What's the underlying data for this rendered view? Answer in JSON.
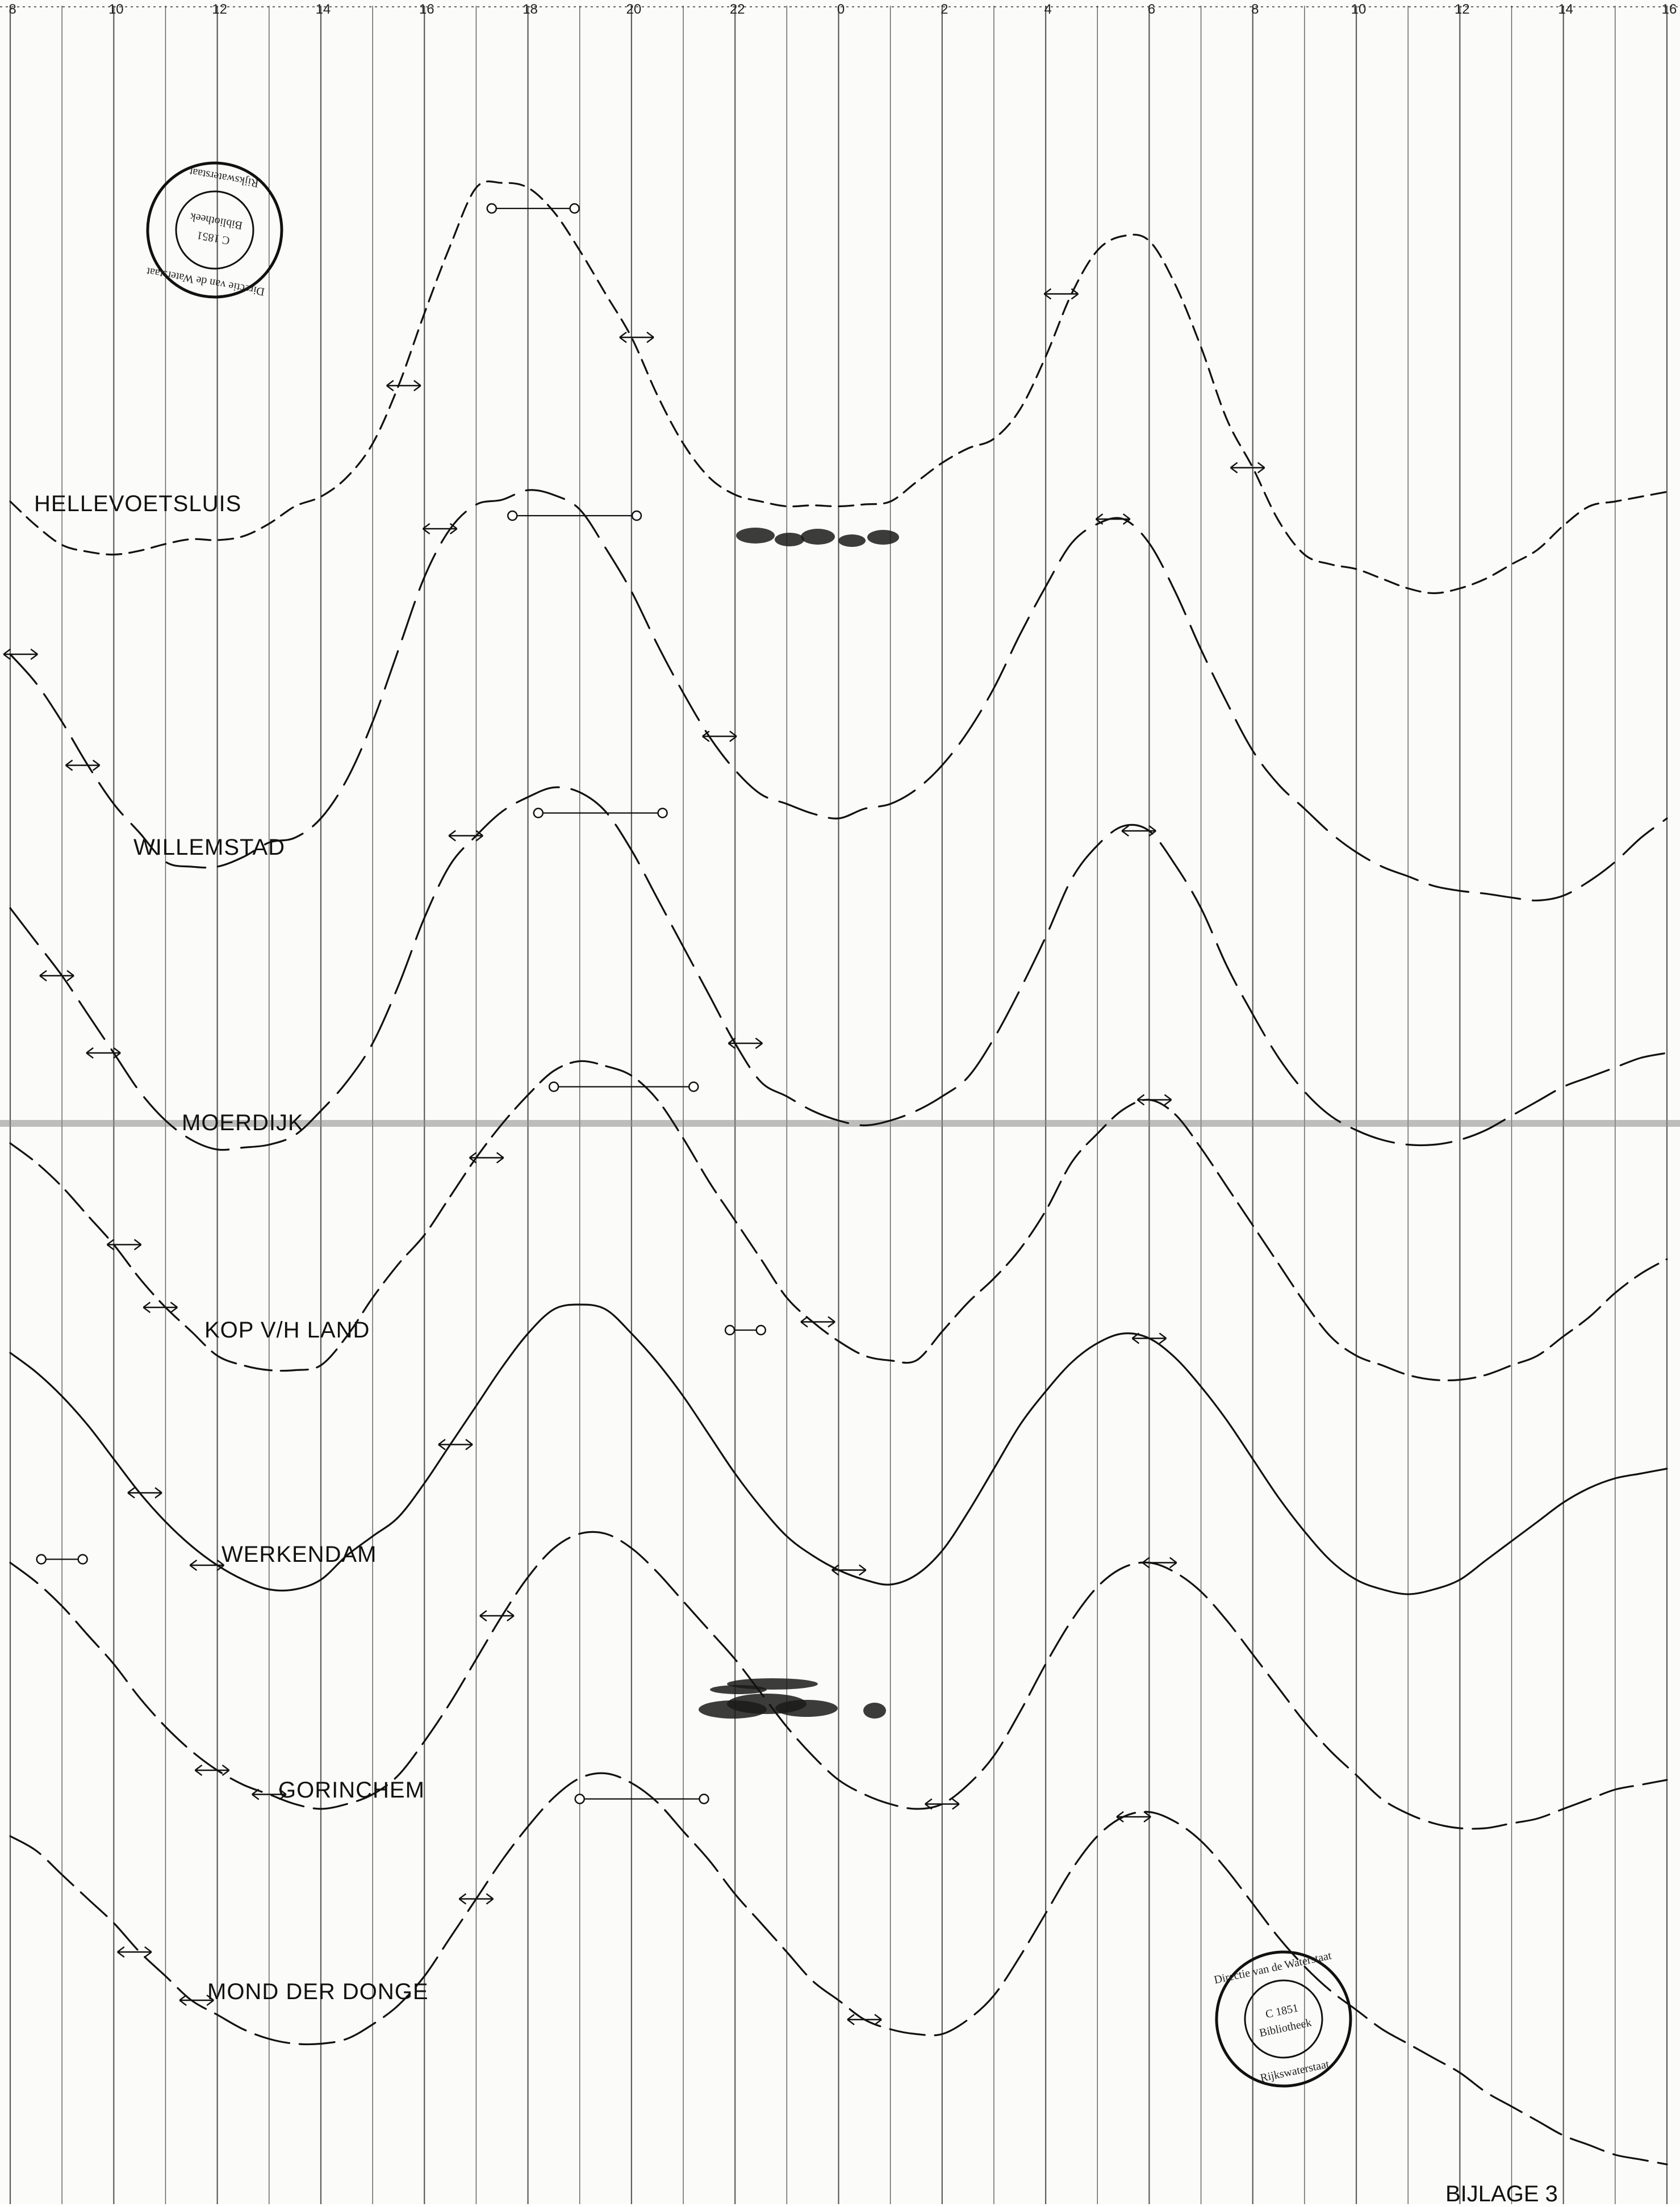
{
  "chart_data": {
    "type": "line",
    "title": "",
    "x_ticks": [
      "8",
      "10",
      "12",
      "14",
      "16",
      "18",
      "20",
      "22",
      "0",
      "2",
      "4",
      "6",
      "8",
      "10",
      "12",
      "14",
      "16"
    ],
    "xlim_hours": [
      8,
      40
    ],
    "grid": "vertical lines every 1 hour, labelled every 2 hours",
    "appendix_label": "BIJLAGE 3",
    "stamp_texts": [
      "Directie van de Waterstaat",
      "C 1851",
      "Bibliotheek",
      "Rijkswaterstaat"
    ],
    "colors": {
      "ink": "#111111",
      "grid": "#333333",
      "paper": "#fbfbf9",
      "stain": "#1a1a1a"
    },
    "series": [
      {
        "name": "HELLEVOETSLUIS",
        "hours": [
          8.0,
          8.5,
          9.0,
          9.5,
          10.0,
          10.5,
          11.0,
          11.5,
          12.0,
          12.5,
          13.0,
          13.5,
          14.0,
          14.5,
          15.0,
          15.5,
          16.0,
          16.5,
          17.0,
          17.5,
          18.0,
          18.5,
          19.0,
          19.5,
          20.0,
          20.5,
          21.0,
          21.5,
          22.0,
          22.5,
          23.0,
          23.5,
          24.0,
          24.5,
          25.0,
          25.5,
          26.0,
          26.5,
          27.0,
          27.5,
          28.0,
          28.5,
          29.0,
          29.5,
          30.0,
          30.5,
          31.0,
          31.5,
          32.0,
          32.5,
          33.0,
          33.5,
          34.0,
          34.5,
          35.0,
          35.5,
          36.0,
          36.5,
          37.0,
          37.5,
          38.0,
          38.5,
          39.0,
          39.5,
          40.0
        ],
        "relative_level": [
          0.1,
          -0.15,
          -0.35,
          -0.42,
          -0.45,
          -0.41,
          -0.34,
          -0.29,
          -0.3,
          -0.26,
          -0.13,
          0.05,
          0.15,
          0.35,
          0.7,
          1.3,
          2.05,
          2.75,
          3.35,
          3.4,
          3.35,
          3.1,
          2.7,
          2.25,
          1.8,
          1.2,
          0.7,
          0.35,
          0.17,
          0.1,
          0.05,
          0.06,
          0.05,
          0.07,
          0.1,
          0.3,
          0.5,
          0.65,
          0.75,
          1.05,
          1.6,
          2.25,
          2.7,
          2.85,
          2.8,
          2.35,
          1.7,
          0.95,
          0.45,
          -0.1,
          -0.45,
          -0.55,
          -0.6,
          -0.7,
          -0.8,
          -0.85,
          -0.8,
          -0.7,
          -0.55,
          -0.4,
          -0.15,
          0.05,
          0.1,
          0.15,
          0.2
        ],
        "high_water_interval": [
          "17.3",
          "18.9"
        ],
        "half_tide_marks": [
          "15.6",
          "20.1",
          "4.3",
          "7.9"
        ]
      },
      {
        "name": "WILLEMSTAD",
        "hours": [
          8.0,
          8.5,
          9.0,
          9.5,
          10.0,
          10.5,
          11.0,
          11.5,
          12.0,
          12.5,
          13.0,
          13.5,
          14.0,
          14.5,
          15.0,
          15.5,
          16.0,
          16.5,
          17.0,
          17.5,
          18.0,
          18.5,
          19.0,
          19.5,
          20.0,
          20.5,
          21.0,
          21.5,
          22.0,
          22.5,
          23.0,
          23.5,
          24.0,
          24.5,
          25.0,
          25.5,
          26.0,
          26.5,
          27.0,
          27.5,
          28.0,
          28.5,
          29.0,
          29.5,
          30.0,
          30.5,
          31.0,
          31.5,
          32.0,
          32.5,
          33.0,
          33.5,
          34.0,
          34.5,
          35.0,
          35.5,
          36.0,
          36.5,
          37.0,
          37.5,
          38.0,
          38.5,
          39.0,
          39.5,
          40.0
        ],
        "relative_level": [
          1.4,
          1.1,
          0.7,
          0.25,
          -0.15,
          -0.45,
          -0.75,
          -0.8,
          -0.8,
          -0.7,
          -0.55,
          -0.5,
          -0.3,
          0.1,
          0.7,
          1.45,
          2.2,
          2.7,
          2.95,
          3.0,
          3.1,
          3.05,
          2.9,
          2.5,
          2.05,
          1.5,
          1.0,
          0.55,
          0.2,
          -0.05,
          -0.15,
          -0.25,
          -0.3,
          -0.2,
          -0.15,
          0.0,
          0.25,
          0.6,
          1.05,
          1.6,
          2.1,
          2.55,
          2.75,
          2.8,
          2.55,
          2.05,
          1.45,
          0.9,
          0.4,
          0.05,
          -0.2,
          -0.45,
          -0.65,
          -0.8,
          -0.9,
          -1.0,
          -1.05,
          -1.08,
          -1.12,
          -1.15,
          -1.1,
          -0.95,
          -0.75,
          -0.5,
          -0.3
        ],
        "high_water_interval": [
          "17.7",
          "20.1"
        ],
        "half_tide_marks": [
          "8.2",
          "16.3",
          "21.7",
          "5.3",
          "9.4"
        ]
      },
      {
        "name": "MOERDIJK",
        "hours": [
          8.0,
          8.5,
          9.0,
          9.5,
          10.0,
          10.5,
          11.0,
          11.5,
          12.0,
          12.5,
          13.0,
          13.5,
          14.0,
          14.5,
          15.0,
          15.5,
          16.0,
          16.5,
          17.0,
          17.5,
          18.0,
          18.5,
          19.0,
          19.5,
          20.0,
          20.5,
          21.0,
          21.5,
          22.0,
          22.5,
          23.0,
          23.5,
          24.0,
          24.5,
          25.0,
          25.5,
          26.0,
          26.5,
          27.0,
          27.5,
          28.0,
          28.5,
          29.0,
          29.5,
          30.0,
          30.5,
          31.0,
          31.5,
          32.0,
          32.5,
          33.0,
          33.5,
          34.0,
          34.5,
          35.0,
          35.5,
          36.0,
          36.5,
          37.0,
          37.5,
          38.0,
          38.5,
          39.0,
          39.5,
          40.0
        ],
        "relative_level": [
          1.8,
          1.45,
          1.1,
          0.7,
          0.3,
          -0.1,
          -0.4,
          -0.6,
          -0.7,
          -0.68,
          -0.65,
          -0.55,
          -0.3,
          0.0,
          0.4,
          1.0,
          1.7,
          2.25,
          2.55,
          2.8,
          2.95,
          3.05,
          3.0,
          2.8,
          2.4,
          1.9,
          1.4,
          0.9,
          0.4,
          0.0,
          -0.15,
          -0.3,
          -0.4,
          -0.45,
          -0.4,
          -0.3,
          -0.15,
          0.05,
          0.45,
          0.95,
          1.5,
          2.1,
          2.45,
          2.65,
          2.6,
          2.25,
          1.8,
          1.2,
          0.7,
          0.25,
          -0.1,
          -0.35,
          -0.5,
          -0.6,
          -0.65,
          -0.65,
          -0.6,
          -0.5,
          -0.35,
          -0.2,
          -0.05,
          0.05,
          0.15,
          0.25,
          0.3
        ],
        "high_water_interval": [
          "18.2",
          "20.6"
        ],
        "half_tide_marks": [
          "8.9",
          "16.8",
          "22.2",
          "5.8",
          "9.8"
        ]
      },
      {
        "name": "KOP V/H LAND",
        "hours": [
          8.0,
          8.5,
          9.0,
          9.5,
          10.0,
          10.5,
          11.0,
          11.5,
          12.0,
          12.5,
          13.0,
          13.5,
          14.0,
          14.5,
          15.0,
          15.5,
          16.0,
          16.5,
          17.0,
          17.5,
          18.0,
          18.5,
          19.0,
          19.5,
          20.0,
          20.5,
          21.0,
          21.5,
          22.0,
          22.5,
          23.0,
          23.5,
          24.0,
          24.5,
          25.0,
          25.5,
          26.0,
          26.5,
          27.0,
          27.5,
          28.0,
          28.5,
          29.0,
          29.5,
          30.0,
          30.5,
          31.0,
          31.5,
          32.0,
          32.5,
          33.0,
          33.5,
          34.0,
          34.5,
          35.0,
          35.5,
          36.0,
          36.5,
          37.0,
          37.5,
          38.0,
          38.5,
          39.0,
          39.5,
          40.0
        ],
        "relative_level": [
          2.1,
          1.9,
          1.65,
          1.35,
          1.05,
          0.7,
          0.4,
          0.15,
          -0.1,
          -0.2,
          -0.25,
          -0.25,
          -0.2,
          0.1,
          0.5,
          0.85,
          1.15,
          1.55,
          1.95,
          2.3,
          2.6,
          2.85,
          2.95,
          2.9,
          2.8,
          2.55,
          2.15,
          1.7,
          1.3,
          0.9,
          0.5,
          0.25,
          0.05,
          -0.1,
          -0.15,
          -0.15,
          0.15,
          0.45,
          0.7,
          1.0,
          1.4,
          1.9,
          2.2,
          2.45,
          2.55,
          2.4,
          2.05,
          1.65,
          1.25,
          0.85,
          0.45,
          0.1,
          -0.1,
          -0.2,
          -0.3,
          -0.35,
          -0.35,
          -0.3,
          -0.2,
          -0.1,
          0.1,
          0.3,
          0.55,
          0.75,
          0.9
        ],
        "high_water_interval": [
          "18.5",
          "21.2"
        ],
        "half_tide_marks": [
          "10.2",
          "17.2",
          "23.6",
          "6.1",
          "10.9"
        ]
      },
      {
        "name": "WERKENDAM",
        "hours": [
          8.0,
          8.5,
          9.0,
          9.5,
          10.0,
          10.5,
          11.0,
          11.5,
          12.0,
          12.5,
          13.0,
          13.5,
          14.0,
          14.5,
          15.0,
          15.5,
          16.0,
          16.5,
          17.0,
          17.5,
          18.0,
          18.5,
          19.0,
          19.5,
          20.0,
          20.5,
          21.0,
          21.5,
          22.0,
          22.5,
          23.0,
          23.5,
          24.0,
          24.5,
          25.0,
          25.5,
          26.0,
          26.5,
          27.0,
          27.5,
          28.0,
          28.5,
          29.0,
          29.5,
          30.0,
          30.5,
          31.0,
          31.5,
          32.0,
          32.5,
          33.0,
          33.5,
          34.0,
          34.5,
          35.0,
          35.5,
          36.0,
          36.5,
          37.0,
          37.5,
          38.0,
          38.5,
          39.0,
          39.5,
          40.0
        ],
        "relative_level": [
          2.4,
          2.2,
          1.95,
          1.65,
          1.3,
          0.95,
          0.65,
          0.4,
          0.2,
          0.05,
          -0.05,
          -0.05,
          0.05,
          0.3,
          0.5,
          0.7,
          1.05,
          1.45,
          1.85,
          2.25,
          2.6,
          2.85,
          2.9,
          2.85,
          2.6,
          2.3,
          1.95,
          1.55,
          1.15,
          0.8,
          0.5,
          0.3,
          0.15,
          0.05,
          0.0,
          0.1,
          0.35,
          0.75,
          1.2,
          1.65,
          2.0,
          2.3,
          2.5,
          2.6,
          2.55,
          2.35,
          2.05,
          1.7,
          1.3,
          0.9,
          0.55,
          0.25,
          0.05,
          -0.05,
          -0.1,
          -0.05,
          0.05,
          0.25,
          0.45,
          0.65,
          0.85,
          1.0,
          1.1,
          1.15,
          1.2
        ],
        "high_water_interval": [
          "21.9",
          "22.5"
        ],
        "half_tide_marks": [
          "10.6",
          "16.6",
          "24.2",
          "6.0",
          "11.8"
        ]
      },
      {
        "name": "GORINCHEM",
        "hours": [
          8.0,
          8.5,
          9.0,
          9.5,
          10.0,
          10.5,
          11.0,
          11.5,
          12.0,
          12.5,
          13.0,
          13.5,
          14.0,
          14.5,
          15.0,
          15.5,
          16.0,
          16.5,
          17.0,
          17.5,
          18.0,
          18.5,
          19.0,
          19.5,
          20.0,
          20.5,
          21.0,
          21.5,
          22.0,
          22.5,
          23.0,
          23.5,
          24.0,
          24.5,
          25.0,
          25.5,
          26.0,
          26.5,
          27.0,
          27.5,
          28.0,
          28.5,
          29.0,
          29.5,
          30.0,
          30.5,
          31.0,
          31.5,
          32.0,
          32.5,
          33.0,
          33.5,
          34.0,
          34.5,
          35.0,
          35.5,
          36.0,
          36.5,
          37.0,
          37.5,
          38.0,
          38.5,
          39.0,
          39.5,
          40.0
        ],
        "relative_level": [
          2.55,
          2.35,
          2.1,
          1.8,
          1.5,
          1.15,
          0.85,
          0.6,
          0.4,
          0.25,
          0.15,
          0.05,
          0.0,
          0.05,
          0.15,
          0.35,
          0.7,
          1.1,
          1.55,
          2.0,
          2.4,
          2.7,
          2.85,
          2.85,
          2.7,
          2.45,
          2.15,
          1.85,
          1.55,
          1.2,
          0.85,
          0.55,
          0.3,
          0.15,
          0.05,
          0.0,
          0.05,
          0.25,
          0.55,
          1.0,
          1.5,
          1.95,
          2.3,
          2.5,
          2.55,
          2.45,
          2.25,
          1.95,
          1.6,
          1.25,
          0.9,
          0.6,
          0.35,
          0.1,
          -0.05,
          -0.15,
          -0.2,
          -0.2,
          -0.15,
          -0.1,
          0.0,
          0.1,
          0.2,
          0.25,
          0.3
        ],
        "high_water_interval": [
          "8.6",
          "9.4"
        ],
        "half_tide_marks": [
          "11.9",
          "17.4",
          "26.0",
          "6.2",
          "13.0"
        ]
      },
      {
        "name": "MOND DER DONGE",
        "hours": [
          8.0,
          8.5,
          9.0,
          9.5,
          10.0,
          10.5,
          11.0,
          11.5,
          12.0,
          12.5,
          13.0,
          13.5,
          14.0,
          14.5,
          15.0,
          15.5,
          16.0,
          16.5,
          17.0,
          17.5,
          18.0,
          18.5,
          19.0,
          19.5,
          20.0,
          20.5,
          21.0,
          21.5,
          22.0,
          22.5,
          23.0,
          23.5,
          24.0,
          24.5,
          25.0,
          25.5,
          26.0,
          26.5,
          27.0,
          27.5,
          28.0,
          28.5,
          29.0,
          29.5,
          30.0,
          30.5,
          31.0,
          31.5,
          32.0,
          32.5,
          33.0,
          33.5,
          34.0,
          34.5,
          35.0,
          35.5,
          36.0,
          36.5,
          37.0,
          37.5,
          38.0,
          38.5,
          39.0,
          39.5,
          40.0
        ],
        "relative_level": [
          2.1,
          1.95,
          1.7,
          1.45,
          1.2,
          0.9,
          0.65,
          0.4,
          0.25,
          0.1,
          0.0,
          -0.05,
          -0.05,
          0.0,
          0.15,
          0.35,
          0.65,
          1.05,
          1.45,
          1.85,
          2.2,
          2.5,
          2.7,
          2.75,
          2.65,
          2.45,
          2.15,
          1.85,
          1.5,
          1.2,
          0.9,
          0.6,
          0.4,
          0.2,
          0.1,
          0.05,
          0.05,
          0.2,
          0.45,
          0.85,
          1.3,
          1.75,
          2.1,
          2.3,
          2.35,
          2.25,
          2.05,
          1.75,
          1.4,
          1.05,
          0.75,
          0.5,
          0.3,
          0.1,
          -0.05,
          -0.2,
          -0.35,
          -0.55,
          -0.7,
          -0.85,
          -1.0,
          -1.1,
          -1.2,
          -1.25,
          -1.3
        ],
        "high_water_interval": [
          "19.0",
          "21.4"
        ],
        "half_tide_marks": [
          "10.4",
          "17.0",
          "24.5",
          "5.7",
          "11.6"
        ]
      }
    ]
  }
}
